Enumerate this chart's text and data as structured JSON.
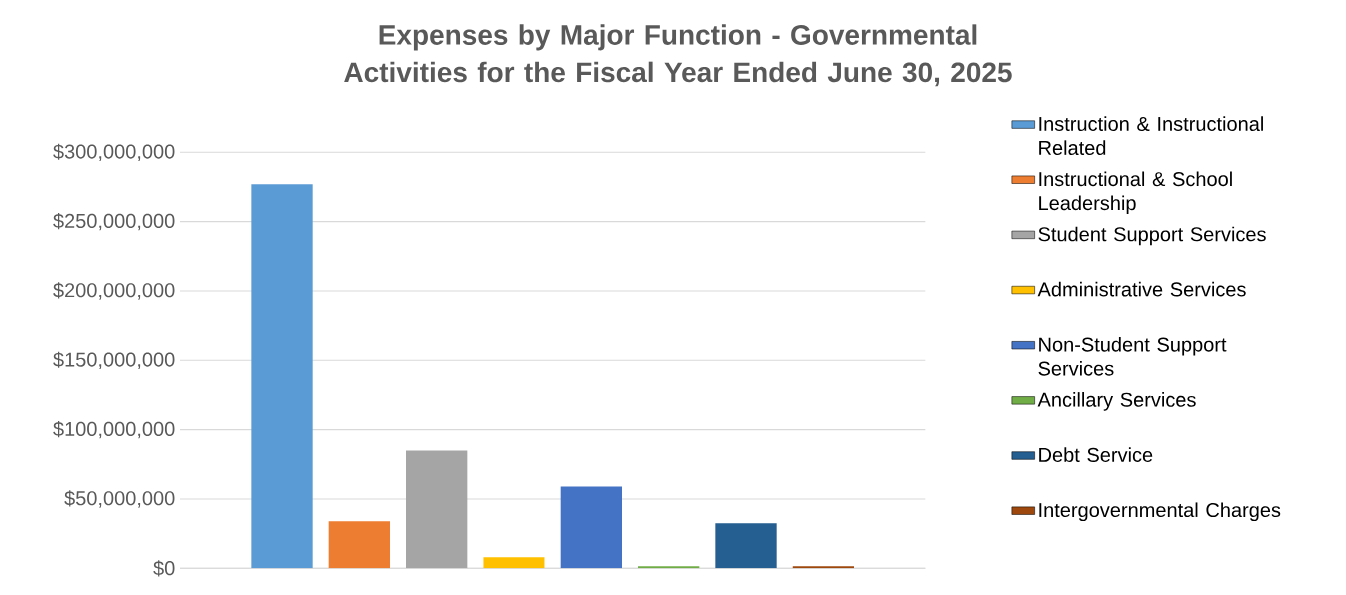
{
  "chart_data": {
    "type": "bar",
    "title": "Expenses by Major Function - Governmental Activities for the Fiscal Year Ended June 30, 2025",
    "categories": [
      null
    ],
    "series": [
      {
        "name": "Instruction & Instructional Related",
        "color": "#5b9bd5",
        "values": [
          277000000
        ]
      },
      {
        "name": "Instructional & School Leadership",
        "color": "#ed7d31",
        "values": [
          34000000
        ]
      },
      {
        "name": "Student Support Services",
        "color": "#a5a5a5",
        "values": [
          85000000
        ]
      },
      {
        "name": "Administrative Services",
        "color": "#ffc000",
        "values": [
          8000000
        ]
      },
      {
        "name": "Non-Student Support Services",
        "color": "#4472c4",
        "values": [
          59000000
        ]
      },
      {
        "name": "Ancillary Services",
        "color": "#70ad47",
        "values": [
          1500000
        ]
      },
      {
        "name": "Debt Service",
        "color": "#255e91",
        "values": [
          32500000
        ]
      },
      {
        "name": "Intergovernmental Charges",
        "color": "#9e480e",
        "values": [
          1500000
        ]
      }
    ],
    "ylim": [
      0,
      300000000
    ],
    "yticks": [
      {
        "value": 0,
        "label": "$0"
      },
      {
        "value": 50000000,
        "label": "$50,000,000"
      },
      {
        "value": 100000000,
        "label": "$100,000,000"
      },
      {
        "value": 150000000,
        "label": "$150,000,000"
      },
      {
        "value": 200000000,
        "label": "$200,000,000"
      },
      {
        "value": 250000000,
        "label": "$250,000,000"
      },
      {
        "value": 300000000,
        "label": "$300,000,000"
      }
    ],
    "grid": "y",
    "legend": "right"
  }
}
